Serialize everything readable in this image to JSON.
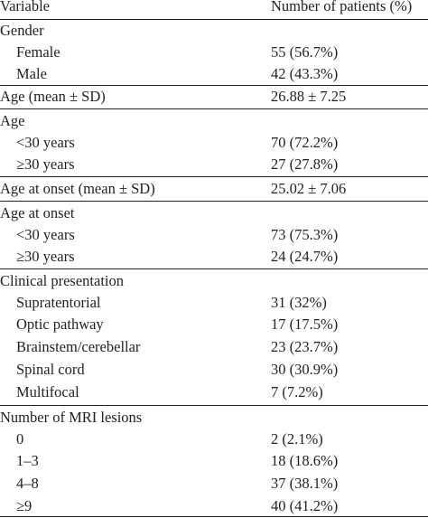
{
  "table": {
    "header": {
      "variable": "Variable",
      "patients": "Number of patients (%)"
    },
    "rows": [
      {
        "label": "Gender",
        "value": ""
      },
      {
        "label": "Female",
        "value": "55 (56.7%)"
      },
      {
        "label": "Male",
        "value": "42 (43.3%)"
      },
      {
        "label": "Age (mean ± SD)",
        "value": "26.88 ± 7.25"
      },
      {
        "label": "Age",
        "value": ""
      },
      {
        "label": "<30 years",
        "value": "70 (72.2%)"
      },
      {
        "label": "≥30 years",
        "value": "27 (27.8%)"
      },
      {
        "label": "Age at onset (mean ± SD)",
        "value": "25.02 ± 7.06"
      },
      {
        "label": "Age at onset",
        "value": ""
      },
      {
        "label": "<30 years",
        "value": "73 (75.3%)"
      },
      {
        "label": "≥30 years",
        "value": "24 (24.7%)"
      },
      {
        "label": "Clinical presentation",
        "value": ""
      },
      {
        "label": "Supratentorial",
        "value": "31 (32%)"
      },
      {
        "label": "Optic pathway",
        "value": "17 (17.5%)"
      },
      {
        "label": "Brainstem/cerebellar",
        "value": "23 (23.7%)"
      },
      {
        "label": "Spinal cord",
        "value": "30 (30.9%)"
      },
      {
        "label": "Multifocal",
        "value": "7 (7.2%)"
      },
      {
        "label": "Number of MRI lesions",
        "value": ""
      },
      {
        "label": "0",
        "value": "2 (2.1%)"
      },
      {
        "label": "1–3",
        "value": "18 (18.6%)"
      },
      {
        "label": "4–8",
        "value": "37 (38.1%)"
      },
      {
        "label": "≥9",
        "value": "40 (41.2%)"
      }
    ]
  }
}
